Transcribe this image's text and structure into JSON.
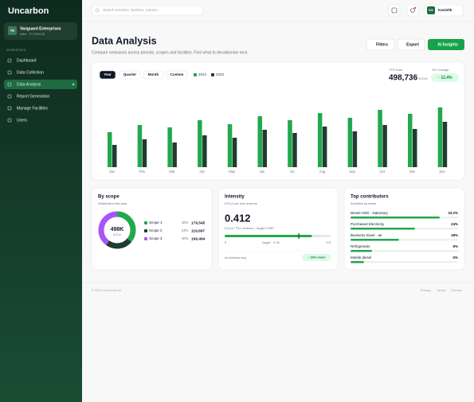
{
  "sidebar": {
    "logo": "Uncarbon",
    "org": {
      "initials": "VE",
      "name": "Vanguard Enterprises",
      "meta": "India · FY 2024-25"
    },
    "section": "WORKSPACE",
    "nav": [
      "Dashboard",
      "Data Collection",
      "Data Analysis",
      "Report Generation",
      "Manage Facilities",
      "Users"
    ]
  },
  "topbar": {
    "search": "Search activities, facilities, reports...",
    "user_initials": "KS",
    "user_name": "Kanishk"
  },
  "header": {
    "title": "Data Analysis",
    "subtitle": "Compare emissions across periods, scopes and facilities. Find what to decarbonise next.",
    "buttons": [
      "Filters",
      "Export",
      "AI Insights"
    ]
  },
  "trend": {
    "tabs": [
      "Year",
      "Quarter",
      "Month",
      "Custom"
    ],
    "ytd_label": "YTD total",
    "ytd_value": "498,736",
    "ytd_unit": "tCO₂e",
    "yoy_label": "YoY change",
    "yoy_value": "↑ 12.4%"
  },
  "chart_data": {
    "type": "bar",
    "categories": [
      "Jan",
      "Feb",
      "Mar",
      "Apr",
      "May",
      "Jun",
      "Jul",
      "Aug",
      "Sep",
      "Oct",
      "Nov",
      "Dec"
    ],
    "series": [
      {
        "name": "2024",
        "color": "#22a84f",
        "values": [
          44,
          53,
          50,
          59,
          54,
          64,
          59,
          68,
          62,
          72,
          67,
          75
        ]
      },
      {
        "name": "2023",
        "color": "#1f3d2e",
        "values": [
          28,
          35,
          31,
          40,
          37,
          47,
          43,
          51,
          45,
          53,
          48,
          57
        ]
      }
    ]
  },
  "scope": {
    "title": "By scope",
    "subtitle": "Distribution this year",
    "center_value": "498K",
    "center_unit": "tCO₂e",
    "items": [
      {
        "name": "Scope 1",
        "color": "#22a84f",
        "share": 36,
        "share_label": "36%",
        "value": "179,545"
      },
      {
        "name": "Scope 2",
        "color": "#1f3d2e",
        "share": 24,
        "share_label": "24%",
        "value": "119,697"
      },
      {
        "name": "Scope 3",
        "color": "#a855f7",
        "share": 40,
        "share_label": "40%",
        "value": "199,494"
      }
    ]
  },
  "intensity": {
    "title": "Intensity",
    "subtitle": "tCO₂e per unit revenue",
    "value": 0.412,
    "description": "tCO₂e / ₹1L revenue · target 0.350",
    "scale_min": 0,
    "scale_max": 0.5,
    "target": {
      "value": 0.35,
      "label": "target · 0.35"
    },
    "compare_label": "vs industry avg",
    "compare_value": "↓ 18% lower"
  },
  "contributors": {
    "title": "Top contributors",
    "subtitle": "Activities by share",
    "items": [
      {
        "name": "Diesel HSD · stationary",
        "share": 33.2,
        "share_label": "33.2%"
      },
      {
        "name": "Purchased Electricity",
        "share": 24,
        "share_label": "24%"
      },
      {
        "name": "Business travel · air",
        "share": 18,
        "share_label": "18%"
      },
      {
        "name": "Refrigerants",
        "share": 8,
        "share_label": "8%"
      },
      {
        "name": "Mobile diesel",
        "share": 5,
        "share_label": "5%"
      }
    ]
  },
  "footer": {
    "copyright": "© 2024 UnCarbon AI",
    "links": [
      "Privacy",
      "Terms",
      "Contact"
    ]
  }
}
